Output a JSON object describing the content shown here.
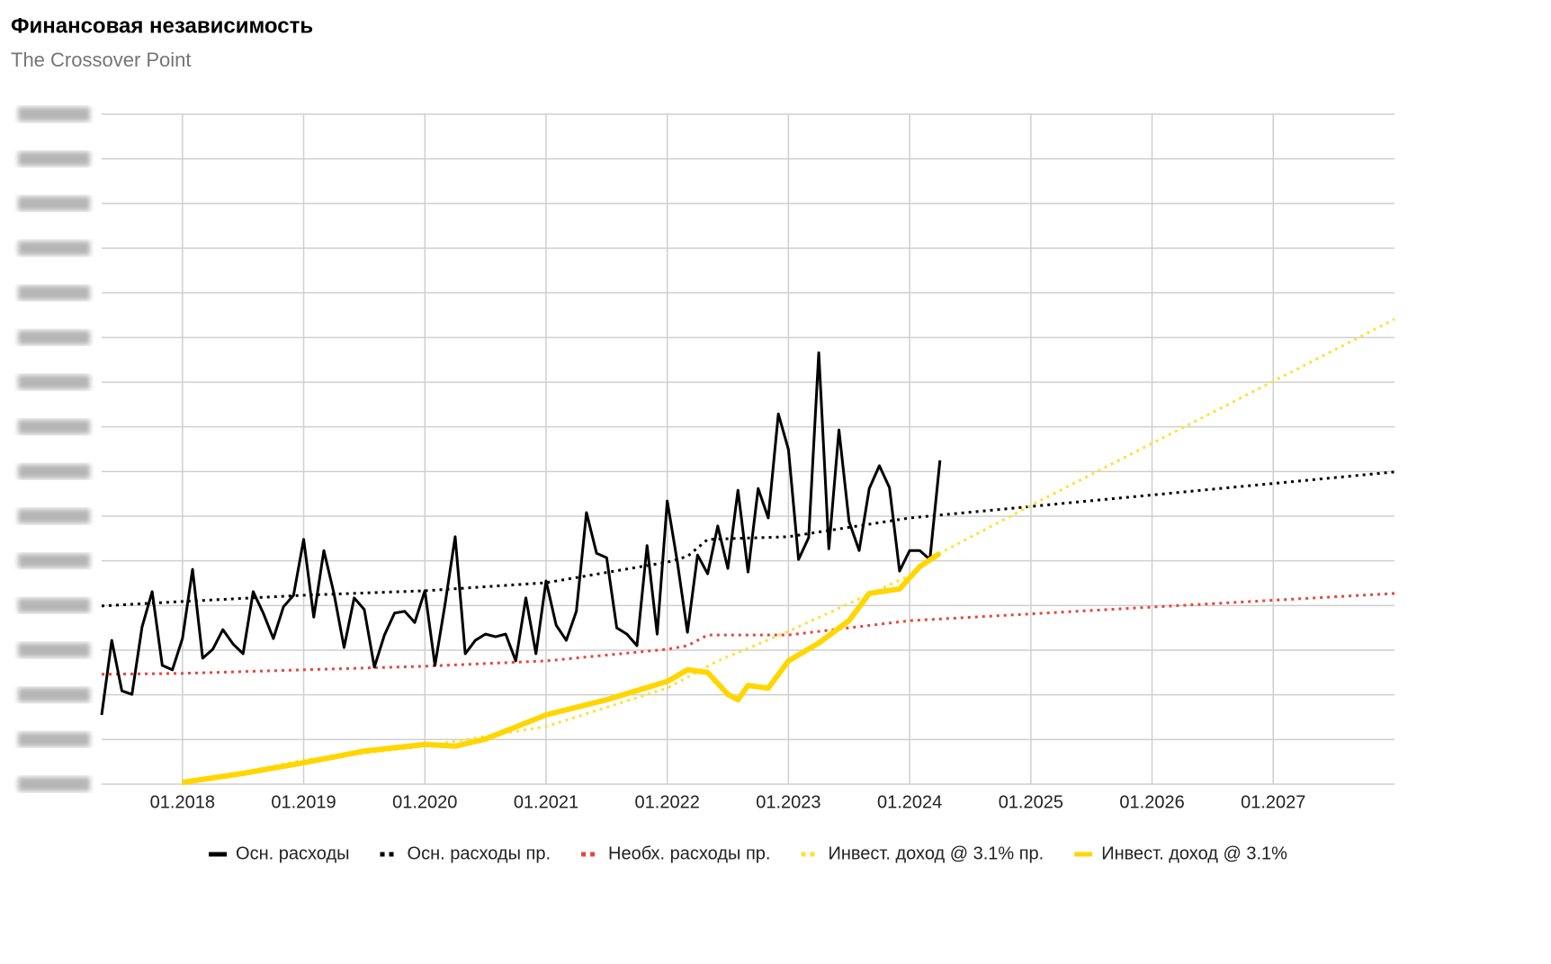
{
  "chart_data": {
    "type": "line",
    "title": "Финансовая независимость",
    "subtitle": "The Crossover Point",
    "xlim": [
      "05.2017",
      "01.2028"
    ],
    "xticks": [
      "01.2018",
      "01.2019",
      "01.2020",
      "01.2021",
      "01.2022",
      "01.2023",
      "01.2024",
      "01.2025",
      "01.2026",
      "01.2027"
    ],
    "ylim": [
      0,
      15
    ],
    "yticks": [
      0,
      1,
      2,
      3,
      4,
      5,
      6,
      7,
      8,
      9,
      10,
      11,
      12,
      13,
      14,
      15
    ],
    "grid": true,
    "legend": "bottom",
    "series": [
      {
        "name": "Осн. расходы",
        "color": "#000000",
        "style": "solid",
        "x": [
          "05.2017",
          "06.2017",
          "07.2017",
          "08.2017",
          "09.2017",
          "10.2017",
          "11.2017",
          "12.2017",
          "01.2018",
          "02.2018",
          "03.2018",
          "04.2018",
          "05.2018",
          "06.2018",
          "07.2018",
          "08.2018",
          "09.2018",
          "10.2018",
          "11.2018",
          "12.2018",
          "01.2019",
          "02.2019",
          "03.2019",
          "04.2019",
          "05.2019",
          "06.2019",
          "07.2019",
          "08.2019",
          "09.2019",
          "10.2019",
          "11.2019",
          "12.2019",
          "01.2020",
          "02.2020",
          "03.2020",
          "04.2020",
          "05.2020",
          "06.2020",
          "07.2020",
          "08.2020",
          "09.2020",
          "10.2020",
          "11.2020",
          "12.2020",
          "01.2021",
          "02.2021",
          "03.2021",
          "04.2021",
          "05.2021",
          "06.2021",
          "07.2021",
          "08.2021",
          "09.2021",
          "10.2021",
          "11.2021",
          "12.2021",
          "01.2022",
          "02.2022",
          "03.2022",
          "04.2022",
          "05.2022",
          "06.2022",
          "07.2022",
          "08.2022",
          "09.2022",
          "10.2022",
          "11.2022",
          "12.2022",
          "01.2023",
          "02.2023",
          "03.2023",
          "04.2023",
          "05.2023",
          "06.2023",
          "07.2023",
          "08.2023",
          "09.2023",
          "10.2023",
          "11.2023",
          "12.2023",
          "01.2024",
          "02.2024",
          "03.2024",
          "04.2024"
        ],
        "values": [
          1.55,
          3.22,
          2.09,
          2.01,
          3.52,
          4.31,
          2.66,
          2.56,
          3.26,
          4.81,
          2.82,
          3.02,
          3.46,
          3.14,
          2.92,
          4.31,
          3.83,
          3.26,
          3.97,
          4.23,
          5.48,
          3.74,
          5.23,
          4.27,
          3.06,
          4.17,
          3.91,
          2.62,
          3.34,
          3.83,
          3.87,
          3.62,
          4.33,
          2.66,
          4.03,
          5.54,
          2.92,
          3.22,
          3.36,
          3.3,
          3.36,
          2.76,
          4.17,
          2.92,
          4.55,
          3.56,
          3.22,
          3.87,
          6.08,
          5.17,
          5.07,
          3.5,
          3.36,
          3.1,
          5.34,
          3.36,
          6.34,
          4.97,
          3.4,
          5.13,
          4.71,
          5.78,
          4.83,
          6.58,
          4.75,
          6.62,
          5.96,
          8.29,
          7.49,
          5.03,
          5.52,
          9.66,
          5.27,
          7.93,
          5.88,
          5.23,
          6.62,
          7.13,
          6.64,
          4.77,
          5.23,
          5.23,
          5.03,
          7.25
        ]
      },
      {
        "name": "Осн. расходы пр.",
        "color": "#000000",
        "style": "dotted",
        "x": [
          "05.2017",
          "01.2018",
          "01.2019",
          "01.2020",
          "01.2021",
          "01.2022",
          "03.2022",
          "05.2022",
          "01.2023",
          "01.2024",
          "01.2028"
        ],
        "values": [
          3.99,
          4.09,
          4.23,
          4.33,
          4.51,
          4.97,
          5.1,
          5.48,
          5.54,
          5.96,
          6.99
        ]
      },
      {
        "name": "Необх. расходы пр.",
        "color": "#e8453c",
        "style": "dotted",
        "x": [
          "05.2017",
          "01.2018",
          "01.2020",
          "01.2021",
          "01.2022",
          "03.2022",
          "05.2022",
          "01.2023",
          "01.2024",
          "01.2028"
        ],
        "values": [
          2.46,
          2.48,
          2.64,
          2.76,
          3.02,
          3.1,
          3.34,
          3.34,
          3.66,
          4.27
        ]
      },
      {
        "name": "Инвест. доход @ 3.1% пр.",
        "color": "#ffe033",
        "style": "dotted",
        "x": [
          "01.2018",
          "01.2019",
          "01.2020",
          "01.2021",
          "01.2022",
          "06.2022",
          "01.2023",
          "01.2024",
          "04.2024",
          "01.2025",
          "01.2028"
        ],
        "values": [
          0,
          0.54,
          0.85,
          1.29,
          2.15,
          2.76,
          3.42,
          4.67,
          5.17,
          6.24,
          10.41
        ]
      },
      {
        "name": "Инвест. доход @ 3.1%",
        "color": "#ffd600",
        "style": "solid-thick",
        "x": [
          "01.2018",
          "07.2018",
          "01.2019",
          "07.2019",
          "01.2020",
          "04.2020",
          "07.2020",
          "01.2021",
          "07.2021",
          "01.2022",
          "03.2022",
          "05.2022",
          "07.2022",
          "08.2022",
          "09.2022",
          "11.2022",
          "01.2023",
          "04.2023",
          "07.2023",
          "09.2023",
          "12.2023",
          "02.2024",
          "04.2024"
        ],
        "values": [
          0.04,
          0.24,
          0.48,
          0.74,
          0.89,
          0.85,
          1.01,
          1.55,
          1.89,
          2.3,
          2.56,
          2.5,
          2.01,
          1.89,
          2.21,
          2.15,
          2.76,
          3.16,
          3.66,
          4.27,
          4.37,
          4.87,
          5.17
        ]
      }
    ]
  }
}
